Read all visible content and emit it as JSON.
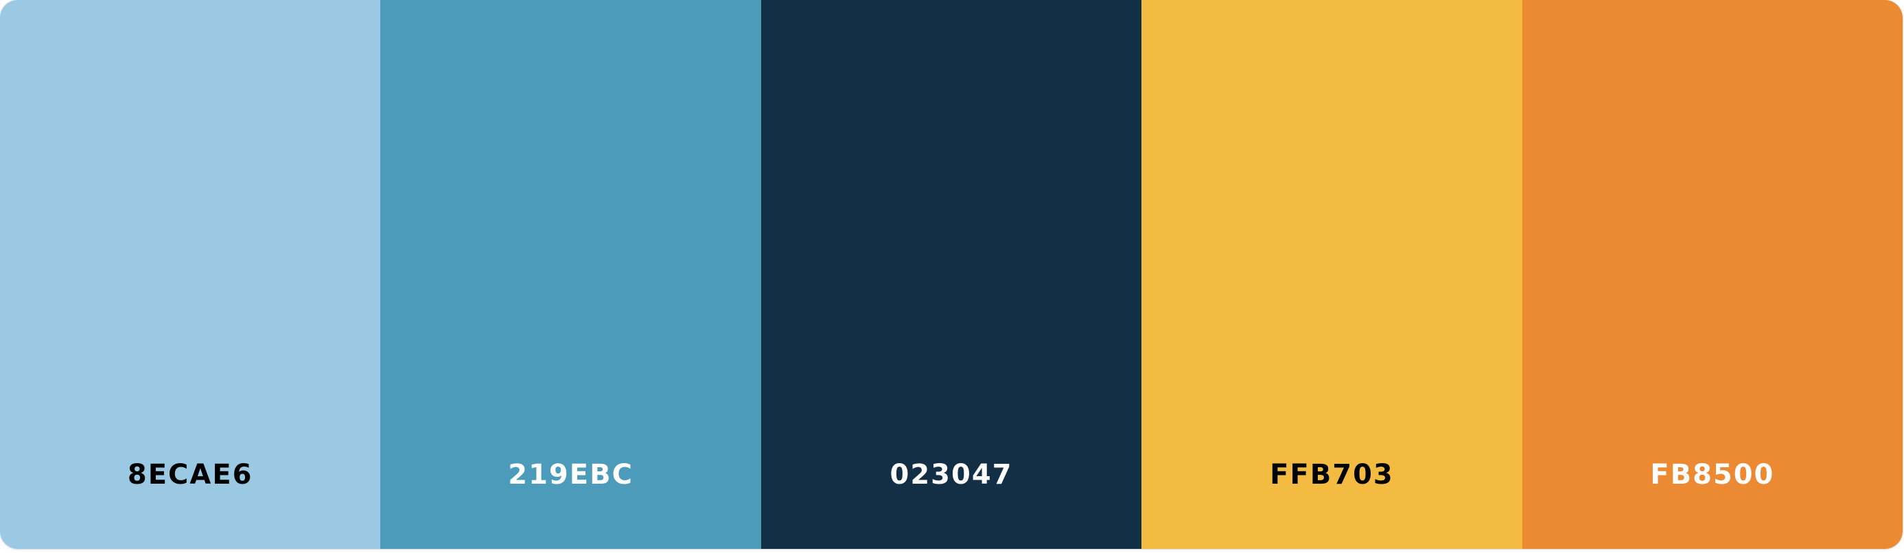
{
  "palette": {
    "swatches": [
      {
        "hex": "8ECAE6",
        "color": "#9BC9E3",
        "text_color": "#000000"
      },
      {
        "hex": "219EBC",
        "color": "#4C9BBA",
        "text_color": "#FFFFFF"
      },
      {
        "hex": "023047",
        "color": "#122F46",
        "text_color": "#FFFFFF"
      },
      {
        "hex": "FFB703",
        "color": "#F4BB42",
        "text_color": "#000000"
      },
      {
        "hex": "FB8500",
        "color": "#EC8A33",
        "text_color": "#FFFFFF"
      }
    ]
  }
}
